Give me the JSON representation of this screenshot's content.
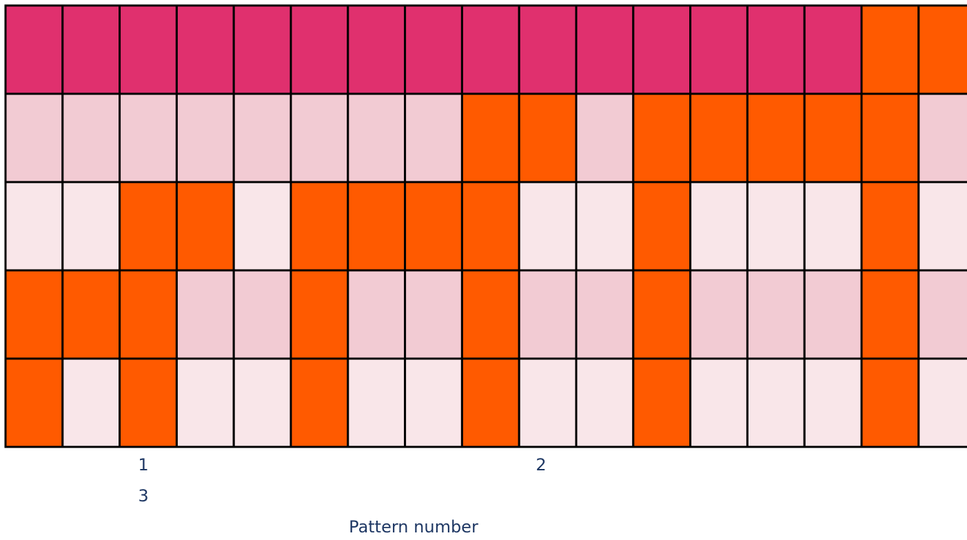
{
  "palette": {
    "D": "#e0306e",
    "L": "#f2cbd3",
    "V": "#f9e6e9",
    "O": "#ff5a00"
  },
  "grid": [
    [
      "D",
      "D",
      "D",
      "D",
      "D",
      "D",
      "D",
      "D",
      "D",
      "D",
      "D",
      "D",
      "D",
      "D",
      "D",
      "O",
      "O"
    ],
    [
      "L",
      "L",
      "L",
      "L",
      "L",
      "L",
      "L",
      "L",
      "O",
      "O",
      "L",
      "O",
      "O",
      "O",
      "O",
      "O",
      "L"
    ],
    [
      "V",
      "V",
      "O",
      "O",
      "V",
      "O",
      "O",
      "O",
      "O",
      "V",
      "V",
      "O",
      "V",
      "V",
      "V",
      "O",
      "V"
    ],
    [
      "O",
      "O",
      "O",
      "L",
      "L",
      "O",
      "L",
      "L",
      "O",
      "L",
      "L",
      "O",
      "L",
      "L",
      "L",
      "O",
      "L"
    ],
    [
      "O",
      "V",
      "O",
      "V",
      "V",
      "O",
      "V",
      "V",
      "O",
      "V",
      "V",
      "O",
      "V",
      "V",
      "V",
      "O",
      "V"
    ]
  ],
  "labels": [
    "1",
    "2",
    "3"
  ],
  "axis_label": "Pattern number"
}
